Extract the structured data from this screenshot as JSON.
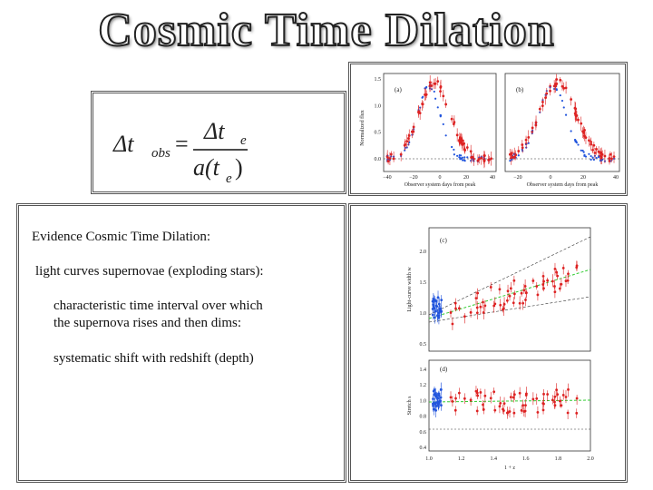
{
  "title": "Cosmic Time Dilation",
  "formula": {
    "lhs": "Δt",
    "lhs_sub": "obs",
    "equals": "=",
    "num": "Δt",
    "num_sub": "e",
    "den_a": "a(t",
    "den_sub": "e",
    "den_close": ")"
  },
  "text": {
    "heading": "Evidence Cosmic Time Dilation:",
    "lines": [
      "light curves supernovae (exploding stars):",
      "characteristic time interval over which",
      "the supernova rises and then dims:",
      "systematic shift with redshift (depth)"
    ]
  },
  "figure_top": {
    "panels": [
      "(a)",
      "(b)"
    ],
    "y_label": "Normalized flux",
    "x_label": "Observer system days from peak",
    "y_ticks": [
      "1.5",
      "1.0",
      "0.5",
      "0.0"
    ],
    "x_ticks_a": [
      "−40",
      "−20",
      "0",
      "20",
      "40"
    ],
    "x_ticks_b": [
      "−20",
      "0",
      "20",
      "40"
    ]
  },
  "figure_bottom": {
    "panels": [
      "(c)",
      "(d)"
    ],
    "y_label_c": "Light-curve width w",
    "y_label_d": "Stretch s",
    "x_label": "1 + z",
    "y_ticks_c": [
      "2.0",
      "1.5",
      "1.0",
      "0.5"
    ],
    "y_ticks_d": [
      "1.4",
      "1.2",
      "1.0",
      "0.8",
      "0.6",
      "0.4"
    ],
    "x_ticks": [
      "1.0",
      "1.2",
      "1.4",
      "1.6",
      "1.8",
      "2.0"
    ]
  }
}
